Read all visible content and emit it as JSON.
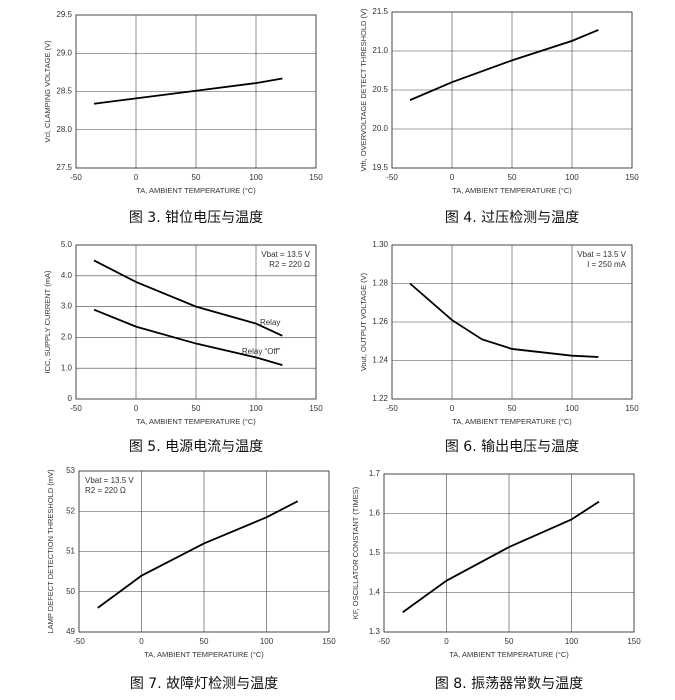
{
  "chart_data": [
    {
      "type": "line",
      "caption": "图 3. 钳位电压与温度",
      "ylabel": "Vcl, CLAMPING VOLTAGE (V)",
      "xlabel": "TA, AMBIENT TEMPERATURE (°C)",
      "x": [
        -35,
        0,
        50,
        100,
        122
      ],
      "values": [
        28.34,
        28.41,
        28.51,
        28.61,
        28.67
      ],
      "color": "#000000",
      "xlim": [
        -50,
        150
      ],
      "xticks": [
        -50,
        0,
        50,
        100,
        150
      ],
      "ylim": [
        27.5,
        29.5
      ],
      "yticks": [
        27.5,
        {
          "value": 28,
          "label": "28.0"
        },
        28.5,
        {
          "value": 29,
          "label": "29.0"
        },
        29.5
      ],
      "grid": true
    },
    {
      "type": "line",
      "caption": "图 4. 过压检测与温度",
      "ylabel": "Vth, OVERVOLTAGE DETECT THRESHOLD (V)",
      "xlabel": "TA, AMBIENT TEMPERATURE (°C)",
      "x": [
        -35,
        0,
        50,
        100,
        122
      ],
      "values": [
        20.37,
        20.6,
        20.88,
        21.13,
        21.27
      ],
      "color": "#000000",
      "xlim": [
        -50,
        150
      ],
      "xticks": [
        -50,
        0,
        50,
        100,
        150
      ],
      "ylim": [
        19.5,
        21.5
      ],
      "yticks": [
        19.5,
        {
          "value": 20,
          "label": "20.0"
        },
        20.5,
        {
          "value": 21,
          "label": "21.0"
        },
        21.5
      ],
      "grid": true
    },
    {
      "type": "line",
      "caption": "图 5. 电源电流与温度",
      "ylabel": "ICC, SUPPLY CURRENT (mA)",
      "xlabel": "TA, AMBIENT TEMPERATURE (°C)",
      "annotations": [
        "Vbat = 13.5 V",
        "R2 = 220 Ω"
      ],
      "x": [
        -35,
        0,
        50,
        100,
        122
      ],
      "series": [
        {
          "name": "Relay",
          "color": "#000000",
          "values": [
            4.5,
            3.8,
            3.0,
            2.45,
            2.05
          ]
        },
        {
          "name": "Relay “Off”",
          "color": "#000000",
          "values": [
            2.9,
            2.35,
            1.8,
            1.35,
            1.1
          ]
        }
      ],
      "xlim": [
        -50,
        150
      ],
      "xticks": [
        -50,
        0,
        50,
        100,
        150
      ],
      "ylim": [
        0,
        5
      ],
      "yticks": [
        0,
        {
          "value": 1,
          "label": "1.0"
        },
        {
          "value": 2,
          "label": "2.0"
        },
        {
          "value": 3,
          "label": "3.0"
        },
        {
          "value": 4,
          "label": "4.0"
        },
        {
          "value": 5,
          "label": "5.0"
        }
      ],
      "grid": true
    },
    {
      "type": "line",
      "caption": "图 6. 输出电压与温度",
      "ylabel": "Vout, OUTPUT VOLTAGE (V)",
      "xlabel": "TA, AMBIENT TEMPERATURE (°C)",
      "annotations": [
        "Vbat = 13.5 V",
        "I = 250 mA"
      ],
      "x": [
        -35,
        0,
        25,
        50,
        100,
        122
      ],
      "values": [
        1.28,
        1.261,
        1.251,
        1.246,
        1.2425,
        1.2418
      ],
      "color": "#000000",
      "xlim": [
        -50,
        150
      ],
      "xticks": [
        -50,
        0,
        50,
        100,
        150
      ],
      "ylim": [
        1.22,
        1.3
      ],
      "yticks": [
        1.22,
        1.24,
        1.26,
        1.28,
        {
          "value": 1.3,
          "label": "1.30"
        }
      ],
      "grid": true
    },
    {
      "type": "line",
      "caption": "图 7. 故障灯检测与温度",
      "ylabel": "LAMP DEFECT DETECTION THRESHOLD (mV)",
      "xlabel": "TA, AMBIENT TEMPERATURE (°C)",
      "annotations": [
        "Vbat = 13.5 V",
        "R2 = 220 Ω"
      ],
      "x": [
        -35,
        0,
        50,
        100,
        125
      ],
      "values": [
        49.6,
        50.4,
        51.2,
        51.85,
        52.25
      ],
      "color": "#000000",
      "xlim": [
        -50,
        150
      ],
      "xticks": [
        -50,
        0,
        50,
        100,
        150
      ],
      "ylim": [
        49,
        53
      ],
      "yticks": [
        49,
        50,
        51,
        52,
        53
      ],
      "grid": true
    },
    {
      "type": "line",
      "caption": "图 8. 振荡器常数与温度",
      "ylabel": "KF, OSCILLATOR CONSTANT (TIMES)",
      "xlabel": "TA, AMBIENT TEMPERATURE (°C)",
      "x": [
        -35,
        0,
        50,
        100,
        122
      ],
      "values": [
        1.35,
        1.43,
        1.515,
        1.585,
        1.63
      ],
      "color": "#000000",
      "xlim": [
        -50,
        150
      ],
      "xticks": [
        -50,
        0,
        50,
        100,
        150
      ],
      "ylim": [
        1.3,
        1.7
      ],
      "yticks": [
        1.3,
        1.4,
        1.5,
        1.6,
        1.7
      ],
      "grid": true
    }
  ]
}
